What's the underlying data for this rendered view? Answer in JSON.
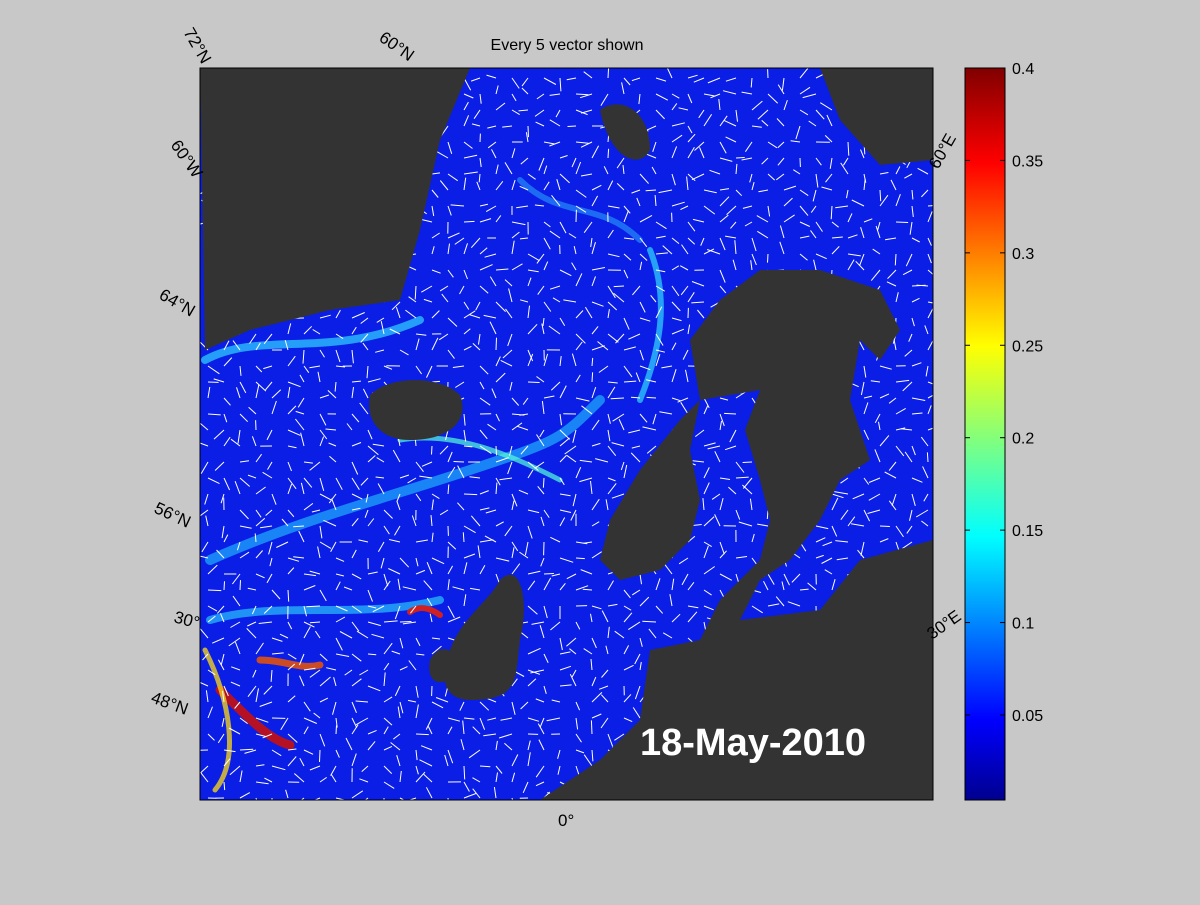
{
  "map": {
    "title": "Every 5 vector shown",
    "date": "18-May-2010",
    "grid_labels": [
      "72°N",
      "60°N",
      "60°W",
      "64°N",
      "56°N",
      "30°",
      "48°N",
      "0°",
      "60°E",
      "30°E"
    ],
    "colorbar": {
      "clim": [
        0.004,
        0.4
      ],
      "ticks": [
        0.05,
        0.1,
        0.15,
        0.2,
        0.25,
        0.3,
        0.35,
        0.4
      ]
    }
  }
}
